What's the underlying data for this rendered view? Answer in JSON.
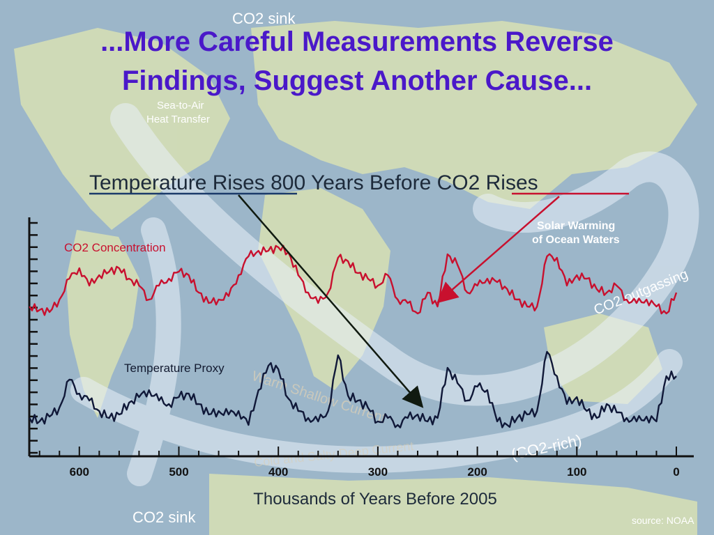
{
  "slide": {
    "title_line1": "...More Careful Measurements Reverse",
    "title_line2": "Findings, Suggest Another Cause...",
    "source": "source: NOAA"
  },
  "map_labels": {
    "co2_sink_top": "CO2 sink",
    "co2_sink_bottom": "CO2 sink",
    "sea_to_air": "Sea-to-Air",
    "heat_transfer": "Heat Transfer",
    "warm_current": "Warm Shallow Current",
    "cold_current": "Cold and Salty Deep Current",
    "co2_rich": "(CO2-rich)",
    "co2_outgassing": "CO2 outgassing"
  },
  "colors": {
    "title": "#4a18c9",
    "co2_series": "#c8102e",
    "temp_series": "#101838",
    "axis": "#111111",
    "arrow_dark": "#101a10",
    "arrow_red": "#c8102e"
  },
  "chart_data": {
    "type": "line",
    "title": "Temperature Rises 800 Years Before CO2 Rises",
    "title_parts": [
      "Temperature Rises",
      " 800 Years Before ",
      "CO2 Rises"
    ],
    "xlabel": "Thousands of Years Before 2005",
    "ylabel": "",
    "x_reversed": true,
    "xlim": [
      0,
      650
    ],
    "x_ticks": [
      600,
      500,
      400,
      300,
      200,
      100,
      0
    ],
    "y_ticks_count": 20,
    "grid": false,
    "annotations": [
      {
        "text": "Solar Warming",
        "text2": "of Ocean Waters"
      }
    ],
    "series": [
      {
        "name": "CO2 Concentration",
        "x": [
          650,
          640,
          630,
          620,
          610,
          600,
          590,
          580,
          570,
          560,
          550,
          540,
          530,
          520,
          510,
          500,
          490,
          480,
          470,
          460,
          450,
          440,
          430,
          420,
          410,
          400,
          390,
          380,
          370,
          360,
          350,
          340,
          330,
          320,
          310,
          300,
          290,
          280,
          270,
          260,
          250,
          240,
          230,
          220,
          210,
          200,
          190,
          180,
          170,
          160,
          150,
          140,
          130,
          120,
          110,
          100,
          90,
          80,
          70,
          60,
          50,
          40,
          30,
          20,
          10,
          0
        ],
        "values": [
          440,
          445,
          448,
          430,
          400,
          385,
          410,
          395,
          390,
          385,
          400,
          410,
          430,
          410,
          400,
          390,
          395,
          420,
          435,
          430,
          425,
          395,
          368,
          360,
          360,
          355,
          362,
          395,
          420,
          435,
          420,
          370,
          375,
          392,
          400,
          410,
          395,
          430,
          435,
          450,
          420,
          440,
          365,
          380,
          420,
          410,
          400,
          405,
          415,
          430,
          440,
          440,
          368,
          370,
          410,
          395,
          400,
          415,
          420,
          410,
          430,
          435,
          430,
          440,
          450,
          420
        ]
      },
      {
        "name": "Temperature Proxy",
        "x": [
          650,
          640,
          630,
          620,
          610,
          600,
          590,
          580,
          570,
          560,
          550,
          540,
          530,
          520,
          510,
          500,
          490,
          480,
          470,
          460,
          450,
          440,
          430,
          420,
          410,
          400,
          390,
          380,
          370,
          360,
          350,
          340,
          330,
          320,
          310,
          300,
          290,
          280,
          270,
          260,
          250,
          240,
          230,
          220,
          210,
          200,
          190,
          180,
          170,
          160,
          150,
          140,
          130,
          120,
          110,
          100,
          90,
          80,
          70,
          60,
          50,
          40,
          30,
          20,
          10,
          0
        ],
        "values": [
          600,
          605,
          598,
          585,
          545,
          565,
          575,
          590,
          600,
          595,
          578,
          570,
          560,
          575,
          580,
          570,
          565,
          580,
          595,
          590,
          595,
          590,
          610,
          560,
          525,
          530,
          572,
          590,
          600,
          605,
          590,
          510,
          568,
          575,
          585,
          605,
          600,
          610,
          600,
          595,
          605,
          600,
          528,
          550,
          575,
          555,
          560,
          605,
          610,
          600,
          595,
          590,
          505,
          540,
          580,
          570,
          590,
          600,
          580,
          592,
          600,
          605,
          598,
          605,
          540,
          540
        ]
      }
    ]
  }
}
